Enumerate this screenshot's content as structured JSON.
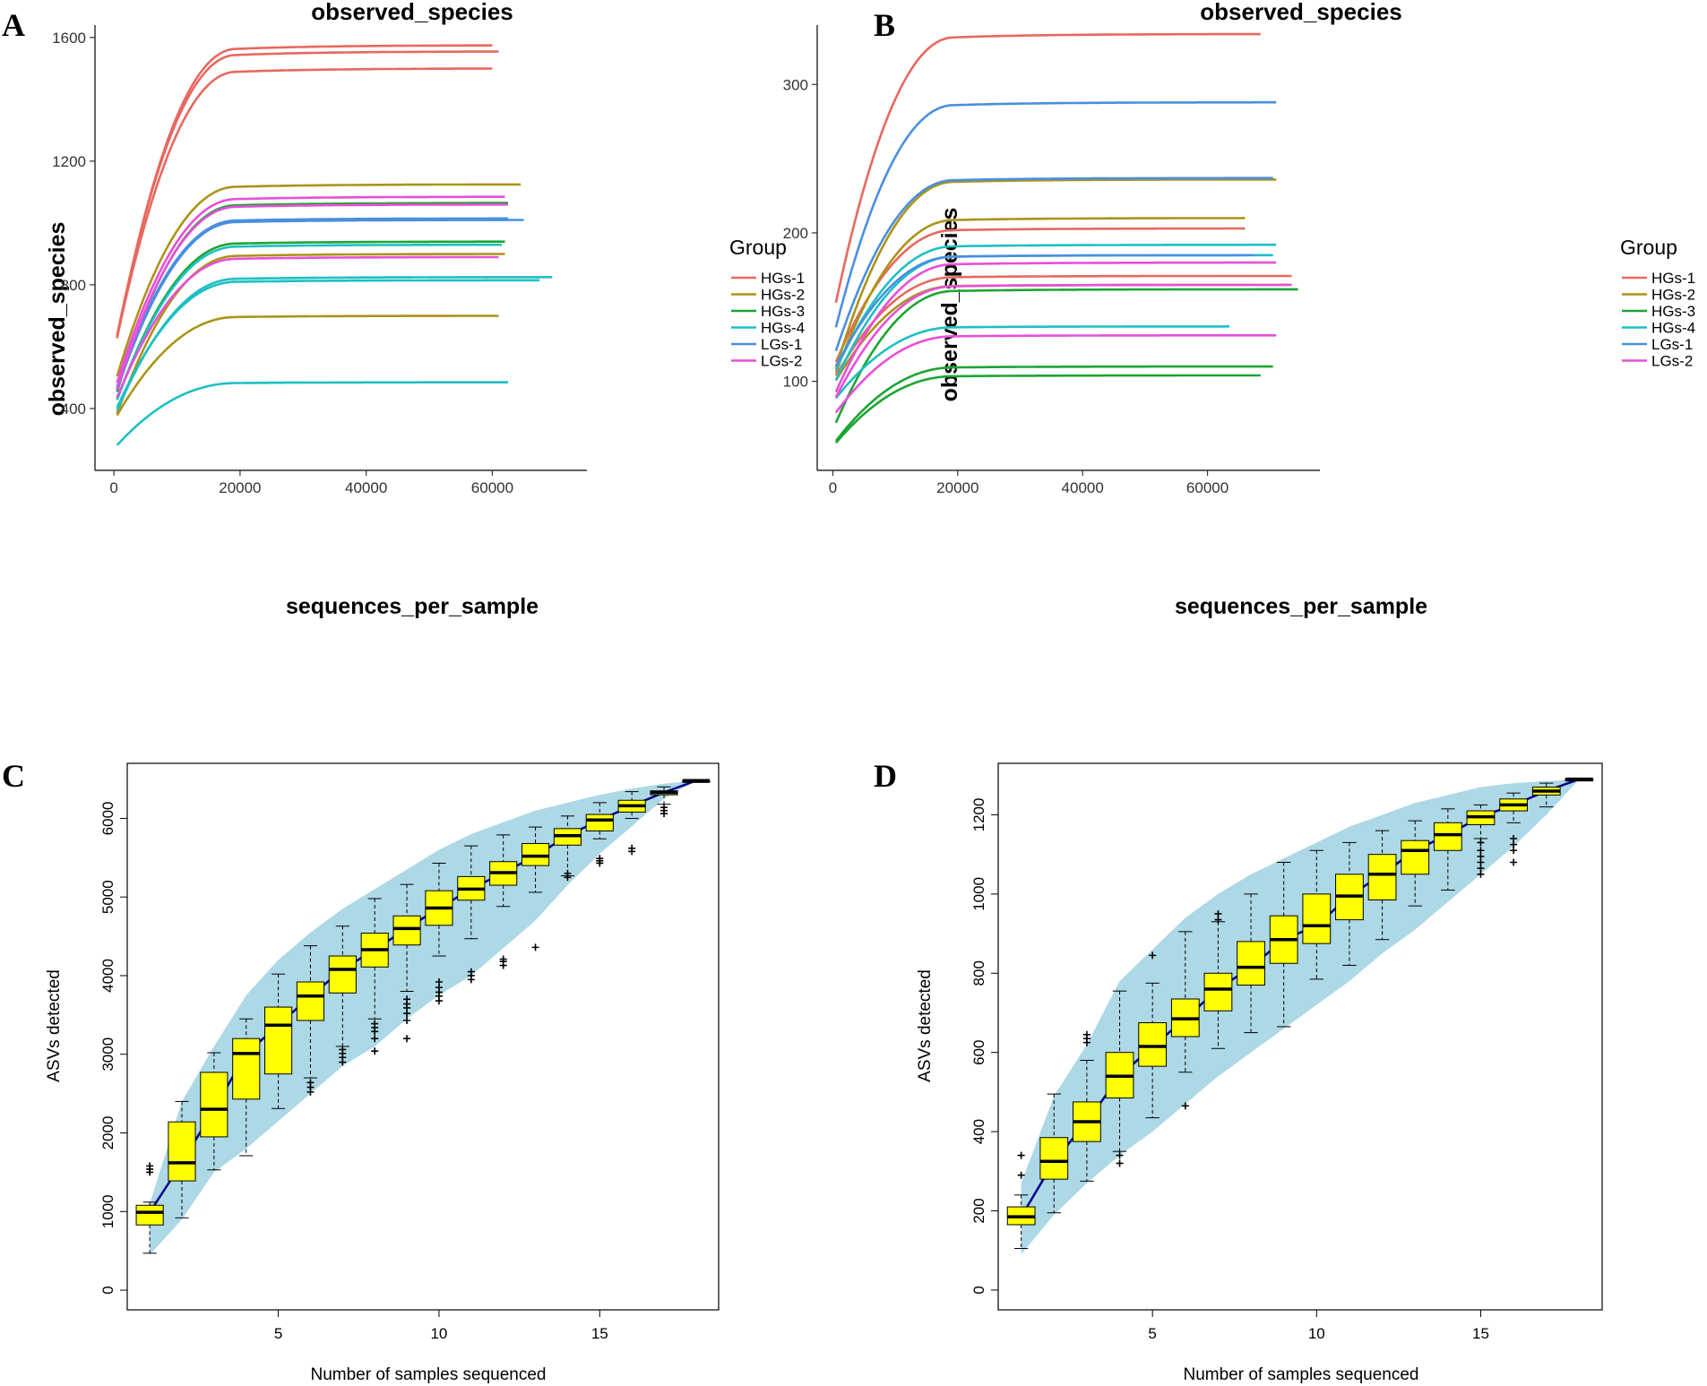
{
  "panels": {
    "A": {
      "letter": "A"
    },
    "B": {
      "letter": "B"
    },
    "C": {
      "letter": "C"
    },
    "D": {
      "letter": "D"
    }
  },
  "colors": {
    "HGs-1": "#e8685f",
    "HGs-2": "#ab9418",
    "HGs-3": "#1ba533",
    "HGs-4": "#1ebfc4",
    "LGs-1": "#4a8fe0",
    "LGs-2": "#e84fd8",
    "envelope": "#add8e6",
    "box": "#ffff00",
    "median_line": "#00008b"
  },
  "chart_data": [
    {
      "id": "A",
      "type": "line",
      "title": "observed_species",
      "xlabel": "sequences_per_sample",
      "ylabel": "observed_species",
      "xlim": [
        -3000,
        75000
      ],
      "ylim": [
        200,
        1640
      ],
      "xticks": [
        0,
        20000,
        40000,
        60000
      ],
      "yticks": [
        400,
        800,
        1200,
        1600
      ],
      "legend_title": "Group",
      "legend": [
        "HGs-1",
        "HGs-2",
        "HGs-3",
        "HGs-4",
        "LGs-1",
        "LGs-2"
      ],
      "series": [
        {
          "group": "HGs-1",
          "start": 575,
          "plateau": 1575,
          "xmax": 60000
        },
        {
          "group": "HGs-1",
          "start": 585,
          "plateau": 1555,
          "xmax": 61000
        },
        {
          "group": "HGs-1",
          "start": 580,
          "plateau": 1500,
          "xmax": 60000
        },
        {
          "group": "HGs-2",
          "start": 470,
          "plateau": 1125,
          "xmax": 64500
        },
        {
          "group": "HGs-2",
          "start": 355,
          "plateau": 900,
          "xmax": 62000
        },
        {
          "group": "HGs-2",
          "start": 360,
          "plateau": 700,
          "xmax": 61000
        },
        {
          "group": "HGs-3",
          "start": 420,
          "plateau": 1065,
          "xmax": 62500
        },
        {
          "group": "HGs-3",
          "start": 400,
          "plateau": 940,
          "xmax": 62000
        },
        {
          "group": "HGs-4",
          "start": 400,
          "plateau": 930,
          "xmax": 61500
        },
        {
          "group": "HGs-4",
          "start": 370,
          "plateau": 825,
          "xmax": 69500
        },
        {
          "group": "HGs-4",
          "start": 380,
          "plateau": 815,
          "xmax": 67500
        },
        {
          "group": "HGs-4",
          "start": 270,
          "plateau": 485,
          "xmax": 62500
        },
        {
          "group": "LGs-1",
          "start": 440,
          "plateau": 1015,
          "xmax": 62500
        },
        {
          "group": "LGs-1",
          "start": 430,
          "plateau": 1010,
          "xmax": 65000
        },
        {
          "group": "LGs-2",
          "start": 450,
          "plateau": 1085,
          "xmax": 62000
        },
        {
          "group": "LGs-2",
          "start": 430,
          "plateau": 1060,
          "xmax": 62500
        },
        {
          "group": "LGs-2",
          "start": 410,
          "plateau": 890,
          "xmax": 61000
        }
      ]
    },
    {
      "id": "B",
      "type": "line",
      "title": "observed_species",
      "xlabel": "sequences_per_sample",
      "ylabel": "observed_species",
      "xlim": [
        -2500,
        78000
      ],
      "ylim": [
        40,
        340
      ],
      "xticks": [
        0,
        20000,
        40000,
        60000
      ],
      "yticks": [
        100,
        200,
        300
      ],
      "legend_title": "Group",
      "legend": [
        "HGs-1",
        "HGs-2",
        "HGs-3",
        "HGs-4",
        "LGs-1",
        "LGs-2"
      ],
      "series": [
        {
          "group": "HGs-1",
          "start": 143,
          "plateau": 334,
          "xmax": 68500
        },
        {
          "group": "HGs-1",
          "start": 108,
          "plateau": 203,
          "xmax": 66000
        },
        {
          "group": "HGs-1",
          "start": 100,
          "plateau": 171,
          "xmax": 73500
        },
        {
          "group": "HGs-2",
          "start": 102,
          "plateau": 236,
          "xmax": 71000
        },
        {
          "group": "HGs-2",
          "start": 100,
          "plateau": 210,
          "xmax": 66000
        },
        {
          "group": "HGs-2",
          "start": 97,
          "plateau": 165,
          "xmax": 73000
        },
        {
          "group": "HGs-3",
          "start": 67,
          "plateau": 162,
          "xmax": 74500
        },
        {
          "group": "HGs-3",
          "start": 57,
          "plateau": 110,
          "xmax": 70500
        },
        {
          "group": "HGs-3",
          "start": 56,
          "plateau": 104,
          "xmax": 68500
        },
        {
          "group": "HGs-4",
          "start": 103,
          "plateau": 192,
          "xmax": 71000
        },
        {
          "group": "HGs-4",
          "start": 96,
          "plateau": 185,
          "xmax": 70500
        },
        {
          "group": "HGs-4",
          "start": 86,
          "plateau": 137,
          "xmax": 63500
        },
        {
          "group": "LGs-1",
          "start": 128,
          "plateau": 288,
          "xmax": 71000
        },
        {
          "group": "LGs-1",
          "start": 114,
          "plateau": 237,
          "xmax": 70500
        },
        {
          "group": "LGs-1",
          "start": 106,
          "plateau": 185,
          "xmax": 67500
        },
        {
          "group": "LGs-2",
          "start": 88,
          "plateau": 180,
          "xmax": 71000
        },
        {
          "group": "LGs-2",
          "start": 85,
          "plateau": 165,
          "xmax": 73500
        },
        {
          "group": "LGs-2",
          "start": 76,
          "plateau": 131,
          "xmax": 71000
        }
      ]
    },
    {
      "id": "C",
      "type": "box",
      "xlabel": "Number of samples sequenced",
      "ylabel": "ASVs detected",
      "xlim": [
        0.3,
        18.7
      ],
      "ylim": [
        -250,
        6700
      ],
      "xticks": [
        5,
        10,
        15
      ],
      "yticks": [
        0,
        1000,
        2000,
        3000,
        4000,
        5000,
        6000
      ],
      "envelope_upper": [
        1100,
        2400,
        3100,
        3750,
        4200,
        4550,
        4850,
        5100,
        5350,
        5600,
        5800,
        5950,
        6100,
        6200,
        6300,
        6380,
        6440,
        6480
      ],
      "envelope_lower": [
        450,
        900,
        1500,
        1800,
        2150,
        2500,
        2850,
        3100,
        3450,
        3750,
        4000,
        4350,
        4700,
        5150,
        5550,
        5900,
        6250,
        6480
      ],
      "boxes": [
        {
          "n": 1,
          "q1": 830,
          "median": 990,
          "q3": 1080,
          "lo": 470,
          "hi": 1120,
          "out": [
            1500,
            1540,
            1580
          ]
        },
        {
          "n": 2,
          "q1": 1390,
          "median": 1620,
          "q3": 2140,
          "lo": 920,
          "hi": 2400,
          "out": []
        },
        {
          "n": 3,
          "q1": 1950,
          "median": 2300,
          "q3": 2770,
          "lo": 1530,
          "hi": 3020,
          "out": []
        },
        {
          "n": 4,
          "q1": 2430,
          "median": 3010,
          "q3": 3200,
          "lo": 1710,
          "hi": 3450,
          "out": []
        },
        {
          "n": 5,
          "q1": 2750,
          "median": 3370,
          "q3": 3600,
          "lo": 2310,
          "hi": 4020,
          "out": []
        },
        {
          "n": 6,
          "q1": 3430,
          "median": 3740,
          "q3": 3920,
          "lo": 2700,
          "hi": 4380,
          "out": [
            2520,
            2580,
            2640
          ]
        },
        {
          "n": 7,
          "q1": 3780,
          "median": 4080,
          "q3": 4250,
          "lo": 3100,
          "hi": 4630,
          "out": [
            2900,
            2960,
            3010,
            3060
          ]
        },
        {
          "n": 8,
          "q1": 4110,
          "median": 4330,
          "q3": 4540,
          "lo": 3450,
          "hi": 4980,
          "out": [
            3040,
            3200,
            3290,
            3340,
            3390
          ]
        },
        {
          "n": 9,
          "q1": 4390,
          "median": 4600,
          "q3": 4760,
          "lo": 3800,
          "hi": 5160,
          "out": [
            3200,
            3430,
            3520,
            3590,
            3640,
            3700
          ]
        },
        {
          "n": 10,
          "q1": 4640,
          "median": 4860,
          "q3": 5080,
          "lo": 4250,
          "hi": 5430,
          "out": [
            3680,
            3740,
            3790,
            3850,
            3920
          ]
        },
        {
          "n": 11,
          "q1": 4960,
          "median": 5100,
          "q3": 5260,
          "lo": 4470,
          "hi": 5650,
          "out": [
            3950,
            4000,
            4050
          ]
        },
        {
          "n": 12,
          "q1": 5150,
          "median": 5310,
          "q3": 5450,
          "lo": 4880,
          "hi": 5790,
          "out": [
            4130,
            4180,
            4210
          ]
        },
        {
          "n": 13,
          "q1": 5400,
          "median": 5520,
          "q3": 5680,
          "lo": 5060,
          "hi": 5890,
          "out": [
            4360
          ]
        },
        {
          "n": 14,
          "q1": 5660,
          "median": 5780,
          "q3": 5870,
          "lo": 5270,
          "hi": 6030,
          "out": [
            5250,
            5300
          ]
        },
        {
          "n": 15,
          "q1": 5840,
          "median": 5980,
          "q3": 6050,
          "lo": 5740,
          "hi": 6200,
          "out": [
            5430,
            5460,
            5490
          ]
        },
        {
          "n": 16,
          "q1": 6080,
          "median": 6160,
          "q3": 6230,
          "lo": 6000,
          "hi": 6340,
          "out": [
            5580,
            5620
          ]
        },
        {
          "n": 17,
          "q1": 6300,
          "median": 6330,
          "q3": 6350,
          "lo": 6180,
          "hi": 6400,
          "out": [
            6060,
            6100,
            6140
          ]
        },
        {
          "n": 18,
          "q1": 6480,
          "median": 6480,
          "q3": 6480,
          "lo": 6480,
          "hi": 6480,
          "out": []
        }
      ]
    },
    {
      "id": "D",
      "type": "box",
      "xlabel": "Number of samples sequenced",
      "ylabel": "ASVs detected",
      "xlim": [
        0.3,
        18.7
      ],
      "ylim": [
        -50,
        1330
      ],
      "xticks": [
        5,
        10,
        15
      ],
      "yticks": [
        0,
        200,
        400,
        600,
        800,
        1000,
        1200
      ],
      "envelope_upper": [
        270,
        490,
        620,
        780,
        860,
        940,
        1000,
        1050,
        1090,
        1130,
        1170,
        1200,
        1230,
        1250,
        1270,
        1280,
        1285,
        1290
      ],
      "envelope_lower": [
        90,
        190,
        270,
        340,
        400,
        470,
        540,
        600,
        660,
        720,
        780,
        850,
        910,
        980,
        1050,
        1120,
        1200,
        1290
      ],
      "boxes": [
        {
          "n": 1,
          "q1": 165,
          "median": 185,
          "q3": 210,
          "lo": 105,
          "hi": 240,
          "out": [
            290,
            340
          ]
        },
        {
          "n": 2,
          "q1": 280,
          "median": 325,
          "q3": 385,
          "lo": 195,
          "hi": 495,
          "out": []
        },
        {
          "n": 3,
          "q1": 375,
          "median": 425,
          "q3": 475,
          "lo": 275,
          "hi": 580,
          "out": [
            625,
            635,
            645
          ]
        },
        {
          "n": 4,
          "q1": 485,
          "median": 540,
          "q3": 600,
          "lo": 350,
          "hi": 755,
          "out": [
            320,
            340
          ]
        },
        {
          "n": 5,
          "q1": 565,
          "median": 615,
          "q3": 675,
          "lo": 435,
          "hi": 775,
          "out": [
            845
          ]
        },
        {
          "n": 6,
          "q1": 640,
          "median": 685,
          "q3": 735,
          "lo": 550,
          "hi": 905,
          "out": [
            465
          ]
        },
        {
          "n": 7,
          "q1": 705,
          "median": 760,
          "q3": 800,
          "lo": 610,
          "hi": 930,
          "out": [
            935,
            950
          ]
        },
        {
          "n": 8,
          "q1": 770,
          "median": 815,
          "q3": 880,
          "lo": 650,
          "hi": 1000,
          "out": []
        },
        {
          "n": 9,
          "q1": 825,
          "median": 885,
          "q3": 945,
          "lo": 665,
          "hi": 1080,
          "out": []
        },
        {
          "n": 10,
          "q1": 875,
          "median": 920,
          "q3": 1000,
          "lo": 785,
          "hi": 1110,
          "out": []
        },
        {
          "n": 11,
          "q1": 935,
          "median": 995,
          "q3": 1050,
          "lo": 820,
          "hi": 1130,
          "out": []
        },
        {
          "n": 12,
          "q1": 985,
          "median": 1050,
          "q3": 1100,
          "lo": 885,
          "hi": 1160,
          "out": []
        },
        {
          "n": 13,
          "q1": 1050,
          "median": 1110,
          "q3": 1135,
          "lo": 970,
          "hi": 1185,
          "out": []
        },
        {
          "n": 14,
          "q1": 1110,
          "median": 1150,
          "q3": 1180,
          "lo": 1010,
          "hi": 1215,
          "out": []
        },
        {
          "n": 15,
          "q1": 1175,
          "median": 1195,
          "q3": 1210,
          "lo": 1140,
          "hi": 1225,
          "out": [
            1050,
            1065,
            1080,
            1095,
            1110,
            1130
          ]
        },
        {
          "n": 16,
          "q1": 1210,
          "median": 1225,
          "q3": 1240,
          "lo": 1180,
          "hi": 1255,
          "out": [
            1080,
            1110,
            1125,
            1140
          ]
        },
        {
          "n": 17,
          "q1": 1250,
          "median": 1260,
          "q3": 1270,
          "lo": 1220,
          "hi": 1280,
          "out": []
        },
        {
          "n": 18,
          "q1": 1290,
          "median": 1290,
          "q3": 1290,
          "lo": 1290,
          "hi": 1290,
          "out": []
        }
      ]
    }
  ]
}
